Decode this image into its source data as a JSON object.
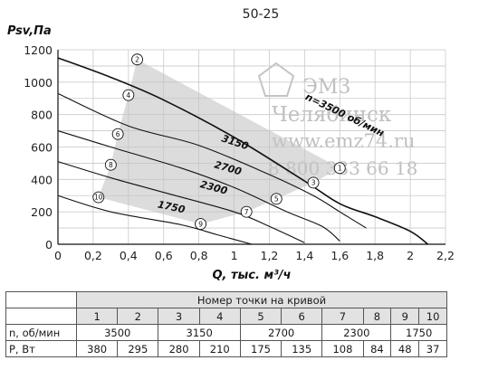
{
  "chart_data": {
    "type": "line",
    "title": "50-25",
    "xlabel": "Q, тыс. м³/ч",
    "ylabel": "Psv,Па",
    "xlim": [
      0,
      2.2
    ],
    "ylim": [
      0,
      1200
    ],
    "x_ticks": [
      "0",
      "0,2",
      "0,4",
      "0,6",
      "0,8",
      "1",
      "1,2",
      "1,4",
      "1,6",
      "1,8",
      "2",
      "2,2"
    ],
    "y_ticks": [
      "0",
      "200",
      "400",
      "600",
      "800",
      "1000",
      "1200"
    ],
    "grid": true,
    "series": [
      {
        "name": "n=3500 об/мин",
        "x": [
          0,
          0.3,
          0.6,
          1.0,
          1.4,
          1.6,
          1.8,
          2.0,
          2.1
        ],
        "y": [
          1150,
          1030,
          890,
          660,
          390,
          250,
          170,
          80,
          0
        ]
      },
      {
        "name": "3150",
        "x": [
          0,
          0.4,
          0.8,
          1.2,
          1.45,
          1.6,
          1.75
        ],
        "y": [
          930,
          730,
          610,
          430,
          300,
          200,
          100
        ]
      },
      {
        "name": "2700",
        "x": [
          0,
          0.3,
          0.7,
          1.0,
          1.3,
          1.5,
          1.6
        ],
        "y": [
          700,
          600,
          470,
          350,
          200,
          110,
          20
        ]
      },
      {
        "name": "2300",
        "x": [
          0,
          0.3,
          0.6,
          1.0,
          1.2,
          1.4
        ],
        "y": [
          510,
          410,
          320,
          200,
          110,
          10
        ]
      },
      {
        "name": "1750",
        "x": [
          0,
          0.3,
          0.7,
          0.9,
          1.1
        ],
        "y": [
          300,
          200,
          120,
          60,
          0
        ]
      }
    ],
    "curve_labels": [
      {
        "text": "n=3500 об/мин",
        "x": 1.62,
        "y": 780
      },
      {
        "text": "3150",
        "x": 1.0,
        "y": 610
      },
      {
        "text": "2700",
        "x": 0.96,
        "y": 450
      },
      {
        "text": "2300",
        "x": 0.88,
        "y": 330
      },
      {
        "text": "1750",
        "x": 0.64,
        "y": 210
      }
    ],
    "operating_points": [
      {
        "label": "1",
        "x": 1.6,
        "y": 470
      },
      {
        "label": "2",
        "x": 0.45,
        "y": 1140
      },
      {
        "label": "3",
        "x": 1.45,
        "y": 380
      },
      {
        "label": "4",
        "x": 0.4,
        "y": 920
      },
      {
        "label": "5",
        "x": 1.24,
        "y": 280
      },
      {
        "label": "6",
        "x": 0.34,
        "y": 680
      },
      {
        "label": "7",
        "x": 1.07,
        "y": 200
      },
      {
        "label": "8",
        "x": 0.3,
        "y": 490
      },
      {
        "label": "9",
        "x": 0.81,
        "y": 125
      },
      {
        "label": "10",
        "x": 0.23,
        "y": 290
      }
    ]
  },
  "watermark": {
    "company_short": "ЭМЗ",
    "city": "Челябинск",
    "site": "www.emz74.ru",
    "phone": "8 800 333 66 18"
  },
  "table": {
    "header": "Номер точки на кривой",
    "points": [
      "1",
      "2",
      "3",
      "4",
      "5",
      "6",
      "7",
      "8",
      "9",
      "10"
    ],
    "speed_label": "n, об/мин",
    "speeds": [
      "3500",
      "3150",
      "2700",
      "2300",
      "1750"
    ],
    "power_label": "P, Вт",
    "power": [
      "380",
      "295",
      "280",
      "210",
      "175",
      "135",
      "108",
      "84",
      "48",
      "37"
    ]
  }
}
